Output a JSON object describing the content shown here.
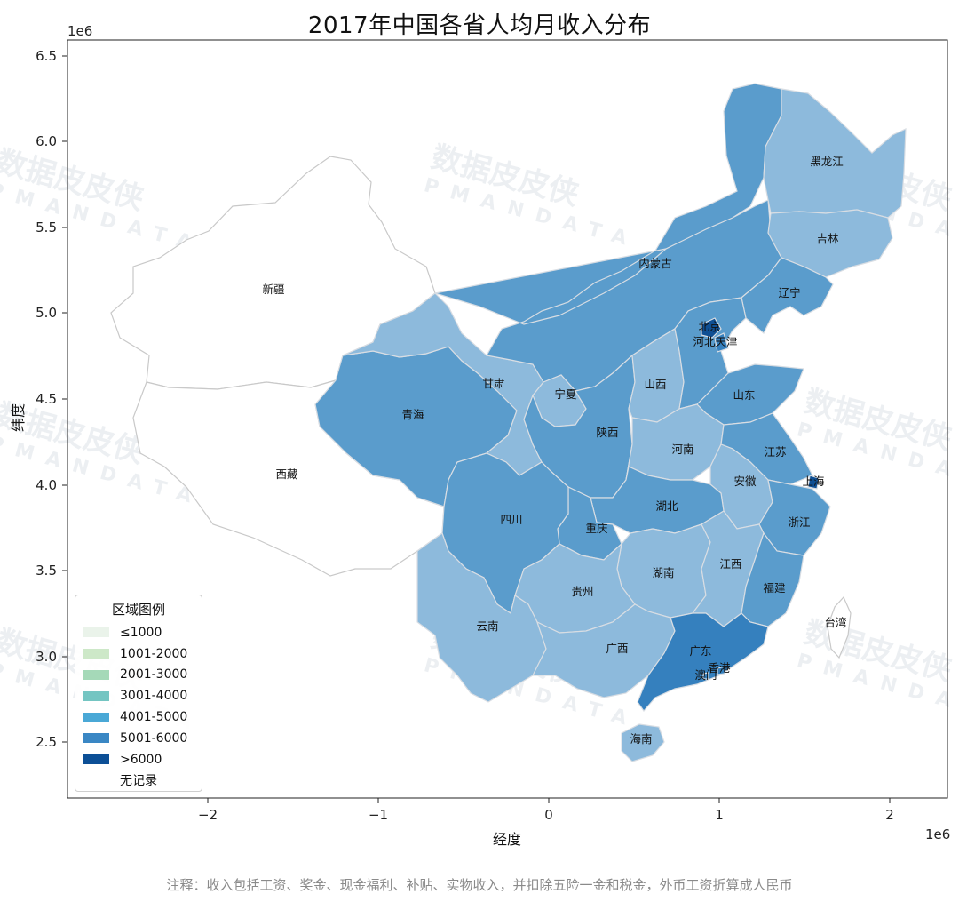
{
  "title": "2017年中国各省人均月收入分布",
  "xlabel": "经度",
  "ylabel": "纬度",
  "x_scale_note": "1e6",
  "y_scale_note": "1e6",
  "x_ticks": [
    "−2",
    "−1",
    "0",
    "1",
    "2"
  ],
  "y_ticks": [
    "2.5",
    "3.0",
    "3.5",
    "4.0",
    "4.5",
    "5.0",
    "5.5",
    "6.0",
    "6.5"
  ],
  "legend": {
    "title": "区域图例",
    "items": [
      {
        "label": "≤1000",
        "color": "#eaf3ea"
      },
      {
        "label": "1001-2000",
        "color": "#cde8c8"
      },
      {
        "label": "2001-3000",
        "color": "#a5d9b8"
      },
      {
        "label": "3001-4000",
        "color": "#74c5c2"
      },
      {
        "label": "4001-5000",
        "color": "#4aa8d6"
      },
      {
        "label": "5001-6000",
        "color": "#3a87c4"
      },
      {
        "label": ">6000",
        "color": "#0c4f96"
      },
      {
        "label": "无记录",
        "color": "#ffffff"
      }
    ]
  },
  "footnote": "注释：收入包括工资、奖金、现金福利、补贴、实物收入，并扣除五险一金和税金，外币工资折算成人民币",
  "watermark": {
    "text": "数据皮皮侠",
    "sub": "PMANDATA"
  },
  "colors": {
    "light": "#8dbadc",
    "mid": "#5a9ccc",
    "dark": "#3580be",
    "darkest": "#0f4f93",
    "nodata": "#ffffff"
  },
  "provinces": [
    {
      "name": "黑龙江",
      "shade": "light"
    },
    {
      "name": "吉林",
      "shade": "light"
    },
    {
      "name": "辽宁",
      "shade": "mid"
    },
    {
      "name": "内蒙古",
      "shade": "mid"
    },
    {
      "name": "新疆",
      "shade": "nodata"
    },
    {
      "name": "西藏",
      "shade": "nodata"
    },
    {
      "name": "青海",
      "shade": "mid"
    },
    {
      "name": "甘肃",
      "shade": "light"
    },
    {
      "name": "宁夏",
      "shade": "light"
    },
    {
      "name": "陕西",
      "shade": "mid"
    },
    {
      "name": "山西",
      "shade": "light"
    },
    {
      "name": "北京",
      "shade": "darkest"
    },
    {
      "name": "天津",
      "shade": "dark"
    },
    {
      "name": "河北",
      "shade": "mid"
    },
    {
      "name": "山东",
      "shade": "mid"
    },
    {
      "name": "河南",
      "shade": "light"
    },
    {
      "name": "江苏",
      "shade": "mid"
    },
    {
      "name": "安徽",
      "shade": "light"
    },
    {
      "name": "上海",
      "shade": "darkest"
    },
    {
      "name": "浙江",
      "shade": "mid"
    },
    {
      "name": "湖北",
      "shade": "mid"
    },
    {
      "name": "四川",
      "shade": "mid"
    },
    {
      "name": "重庆",
      "shade": "mid"
    },
    {
      "name": "湖南",
      "shade": "light"
    },
    {
      "name": "江西",
      "shade": "light"
    },
    {
      "name": "福建",
      "shade": "mid"
    },
    {
      "name": "贵州",
      "shade": "light"
    },
    {
      "name": "云南",
      "shade": "light"
    },
    {
      "name": "广西",
      "shade": "light"
    },
    {
      "name": "广东",
      "shade": "dark"
    },
    {
      "name": "香港",
      "shade": "dark"
    },
    {
      "name": "澳门",
      "shade": "dark"
    },
    {
      "name": "海南",
      "shade": "light"
    },
    {
      "name": "台湾",
      "shade": "nodata"
    }
  ]
}
